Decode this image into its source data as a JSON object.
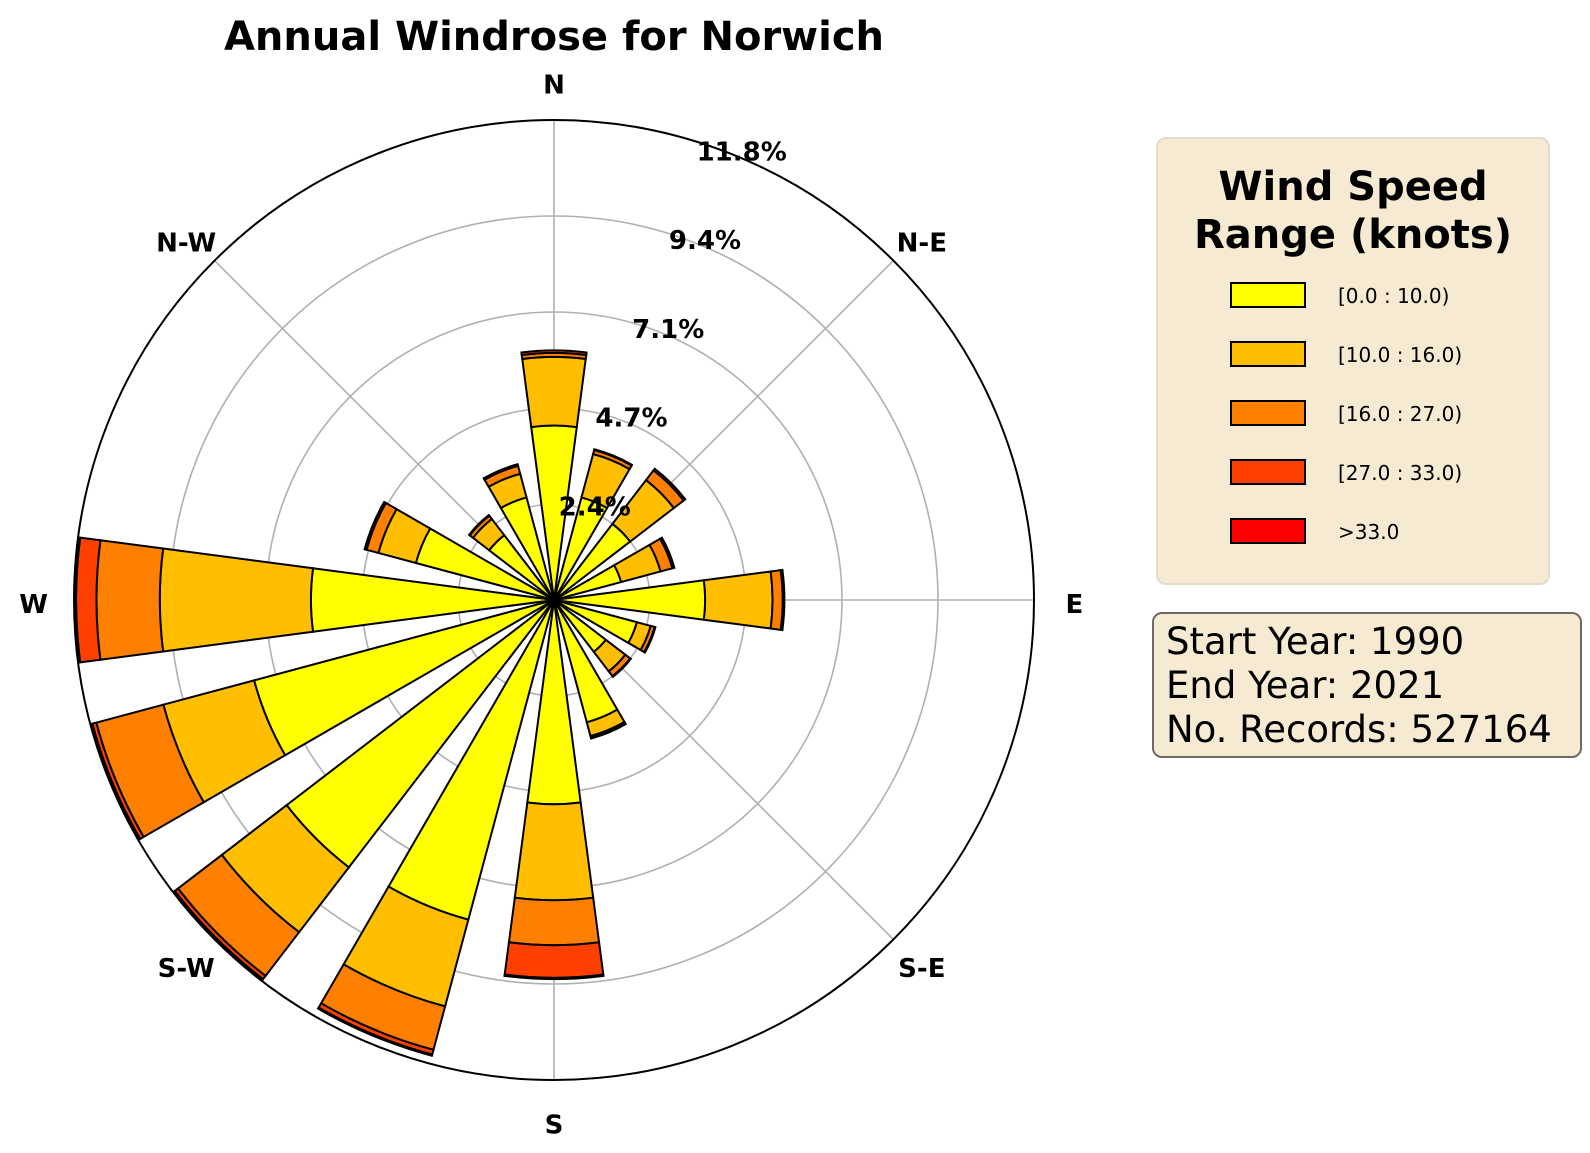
{
  "chart_data": {
    "type": "windrose",
    "title": "Annual Windrose for Norwich",
    "directions": [
      "N",
      "N-E",
      "E",
      "S-E",
      "S",
      "S-W",
      "W",
      "N-W"
    ],
    "sector_count": 16,
    "sector_angles_deg": [
      0,
      22.5,
      45,
      67.5,
      90,
      112.5,
      135,
      157.5,
      180,
      202.5,
      225,
      247.5,
      270,
      292.5,
      315,
      337.5
    ],
    "ring_labels": [
      "2.4%",
      "4.7%",
      "7.1%",
      "9.4%",
      "11.8%"
    ],
    "ring_values": [
      2.35,
      4.7,
      7.05,
      9.4,
      11.75
    ],
    "rmax": 11.75,
    "speed_bins": [
      "[0.0 : 10.0)",
      "[10.0 : 16.0)",
      "[16.0 : 27.0)",
      "[27.0 : 33.0)",
      ">33.0"
    ],
    "bin_colors": [
      "#ffff00",
      "#ffbf00",
      "#ff8000",
      "#ff4000",
      "#ff0000"
    ],
    "cumulative_frequency_percent": [
      [
        4.27,
        5.95,
        6.05,
        6.11,
        6.11
      ],
      [
        2.6,
        3.7,
        3.8,
        3.82,
        3.82
      ],
      [
        2.35,
        3.7,
        4.0,
        4.05,
        4.05
      ],
      [
        1.7,
        2.7,
        3.0,
        3.05,
        3.05
      ],
      [
        3.7,
        5.35,
        5.6,
        5.64,
        5.64
      ],
      [
        2.1,
        2.45,
        2.55,
        2.57,
        2.57
      ],
      [
        1.6,
        2.2,
        2.35,
        2.37,
        2.37
      ],
      [
        3.1,
        3.45,
        3.5,
        3.51,
        3.51
      ],
      [
        5.0,
        7.35,
        8.45,
        9.25,
        9.28
      ],
      [
        8.1,
        10.3,
        11.4,
        11.52,
        11.55
      ],
      [
        8.25,
        10.25,
        11.6,
        11.7,
        11.73
      ],
      [
        7.6,
        9.9,
        11.6,
        11.7,
        11.72
      ],
      [
        5.95,
        9.65,
        11.2,
        11.7,
        11.72
      ],
      [
        3.5,
        4.45,
        4.75,
        4.8,
        4.8
      ],
      [
        2.0,
        2.5,
        2.6,
        2.62,
        2.62
      ],
      [
        2.6,
        3.2,
        3.4,
        3.44,
        3.44
      ]
    ]
  },
  "legend": {
    "title_line1": "Wind Speed",
    "title_line2": "Range (knots)"
  },
  "info": {
    "start_year": "Start Year: 1990",
    "end_year": "End Year: 2021",
    "records": "No. Records: 527164"
  }
}
